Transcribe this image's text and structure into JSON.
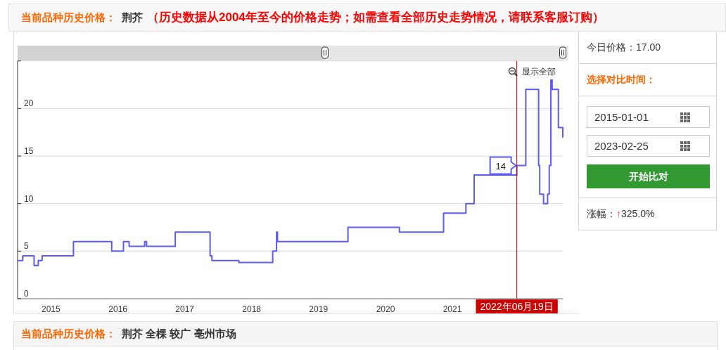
{
  "chart_data": [
    {
      "type": "step",
      "title": "当前品种历史价格：荆芥",
      "subtitle": "（历史数据从2004年至今的价格走势；如需查看全部历史走势情况，请联系客服订购）",
      "x": [
        "2015-01-01",
        "2015-01-29",
        "2015-04-01",
        "2015-04-24",
        "2015-05-15",
        "2015-11-02",
        "2016-05-29",
        "2016-08-01",
        "2016-09-01",
        "2016-11-25",
        "2016-12-05",
        "2017-05-11",
        "2017-11-17",
        "2017-11-27",
        "2018-04-23",
        "2018-10-25",
        "2018-11-15",
        "2018-11-20",
        "2019-12-10",
        "2020-09-16",
        "2021-05-15",
        "2021-09-14",
        "2021-10-29",
        "2022-06-19",
        "2022-08-07",
        "2022-10-16",
        "2022-10-22",
        "2022-11-12",
        "2022-12-04",
        "2022-12-13",
        "2022-12-22",
        "2022-12-29",
        "2023-02-01",
        "2023-02-25"
      ],
      "values": [
        4,
        4.5,
        3.5,
        4,
        4.5,
        6,
        5,
        6,
        5.5,
        6,
        5.5,
        7,
        4.5,
        4,
        3.8,
        5,
        7,
        6,
        7.5,
        7,
        9,
        10,
        13,
        14,
        22,
        14,
        11,
        10,
        11,
        14,
        23,
        22,
        18,
        17
      ],
      "color": "#5c5cf2",
      "xlim": [
        "2015-01-01",
        "2023-02-25"
      ],
      "xticks": [
        {
          "value": "2015-07-02",
          "label": "2015"
        },
        {
          "value": "2016-07-02",
          "label": "2016"
        },
        {
          "value": "2017-07-02",
          "label": "2017"
        },
        {
          "value": "2018-07-02",
          "label": "2018"
        },
        {
          "value": "2019-07-02",
          "label": "2019"
        },
        {
          "value": "2020-07-02",
          "label": "2020"
        },
        {
          "value": "2021-07-02",
          "label": "2021"
        }
      ],
      "ylim": [
        0,
        25
      ],
      "yticks": [
        0,
        5,
        10,
        15,
        20,
        {
          "value": 25,
          "label": null
        }
      ],
      "grid": "y",
      "ref_lines": [
        {
          "axis": "x",
          "value": "2022-06-19",
          "label": "2022年06月19日",
          "color": "#cc0000"
        }
      ],
      "annotations": [
        "显示全部",
        {
          "text": "14",
          "x": "2022-06-19",
          "y": 14
        },
        "当前品种历史价格：荆芥 全棵 较广 亳州市场"
      ]
    },
    {
      "type": "other",
      "annotations": [
        "今日价格：17.00",
        "选择对比时间：",
        "2015-01-01",
        "2023-02-25",
        "开始比对",
        "涨幅：↑325.0%"
      ]
    }
  ]
}
